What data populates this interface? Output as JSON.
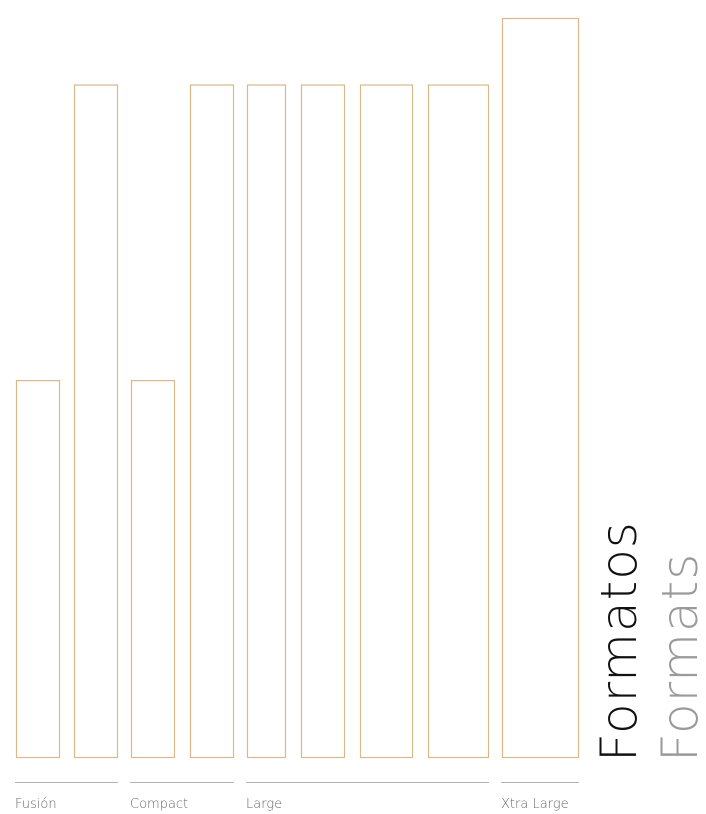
{
  "title": {
    "primary": "Formatos",
    "secondary": "Formats"
  },
  "colors": {
    "panel_outline": "#d9b88c",
    "divider": "#b3b3b3",
    "label": "#666666",
    "title_primary": "#111111",
    "title_secondary": "#9a9a9a"
  },
  "groups": [
    {
      "label": "Fusión",
      "panels": [
        {
          "relative_height": 0.51
        },
        {
          "relative_height": 0.91
        }
      ]
    },
    {
      "label": "Compact",
      "panels": [
        {
          "relative_height": 0.51
        },
        {
          "relative_height": 0.91
        }
      ]
    },
    {
      "label": "Large",
      "panels": [
        {
          "relative_height": 0.91
        },
        {
          "relative_height": 0.91
        },
        {
          "relative_height": 0.91
        },
        {
          "relative_height": 0.91
        }
      ]
    },
    {
      "label": "Xtra Large",
      "panels": [
        {
          "relative_height": 1.0
        }
      ]
    }
  ]
}
